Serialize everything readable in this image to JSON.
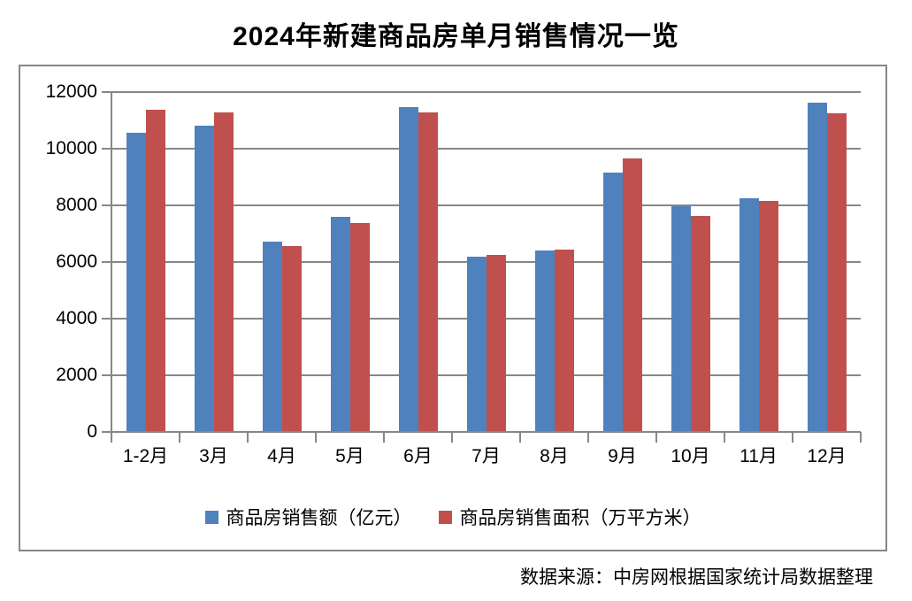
{
  "page": {
    "title": "2024年新建商品房单月销售情况一览",
    "source_note": "数据来源：中房网根据国家统计局数据整理"
  },
  "colors": {
    "series_blue": "#4F81BD",
    "series_red": "#C0504D",
    "grid": "#878787",
    "text": "#000000",
    "background": "#FFFFFF"
  },
  "chart_data": {
    "type": "bar",
    "title": "2024年新建商品房单月销售情况一览",
    "categories": [
      "1-2月",
      "3月",
      "4月",
      "5月",
      "6月",
      "7月",
      "8月",
      "9月",
      "10月",
      "11月",
      "12月"
    ],
    "series": [
      {
        "name": "商品房销售额（亿元）",
        "key": "sales-amount",
        "color": "#4F81BD",
        "values": [
          10570,
          10800,
          6710,
          7600,
          11470,
          6190,
          6400,
          9150,
          7980,
          8250,
          11620
        ]
      },
      {
        "name": "商品房销售面积（万平方米）",
        "key": "sales-area",
        "color": "#C0504D",
        "values": [
          11390,
          11270,
          6550,
          7370,
          11280,
          6240,
          6450,
          9660,
          7630,
          8150,
          11250
        ]
      }
    ],
    "xlabel": "",
    "ylabel": "",
    "ylim": [
      0,
      12000
    ],
    "ytick_step": 2000,
    "ytick_labels": [
      "12000",
      "10000",
      "8000",
      "6000",
      "4000",
      "2000",
      "0"
    ],
    "grid": true,
    "legend_position": "bottom",
    "source_note": "数据来源：中房网根据国家统计局数据整理"
  }
}
